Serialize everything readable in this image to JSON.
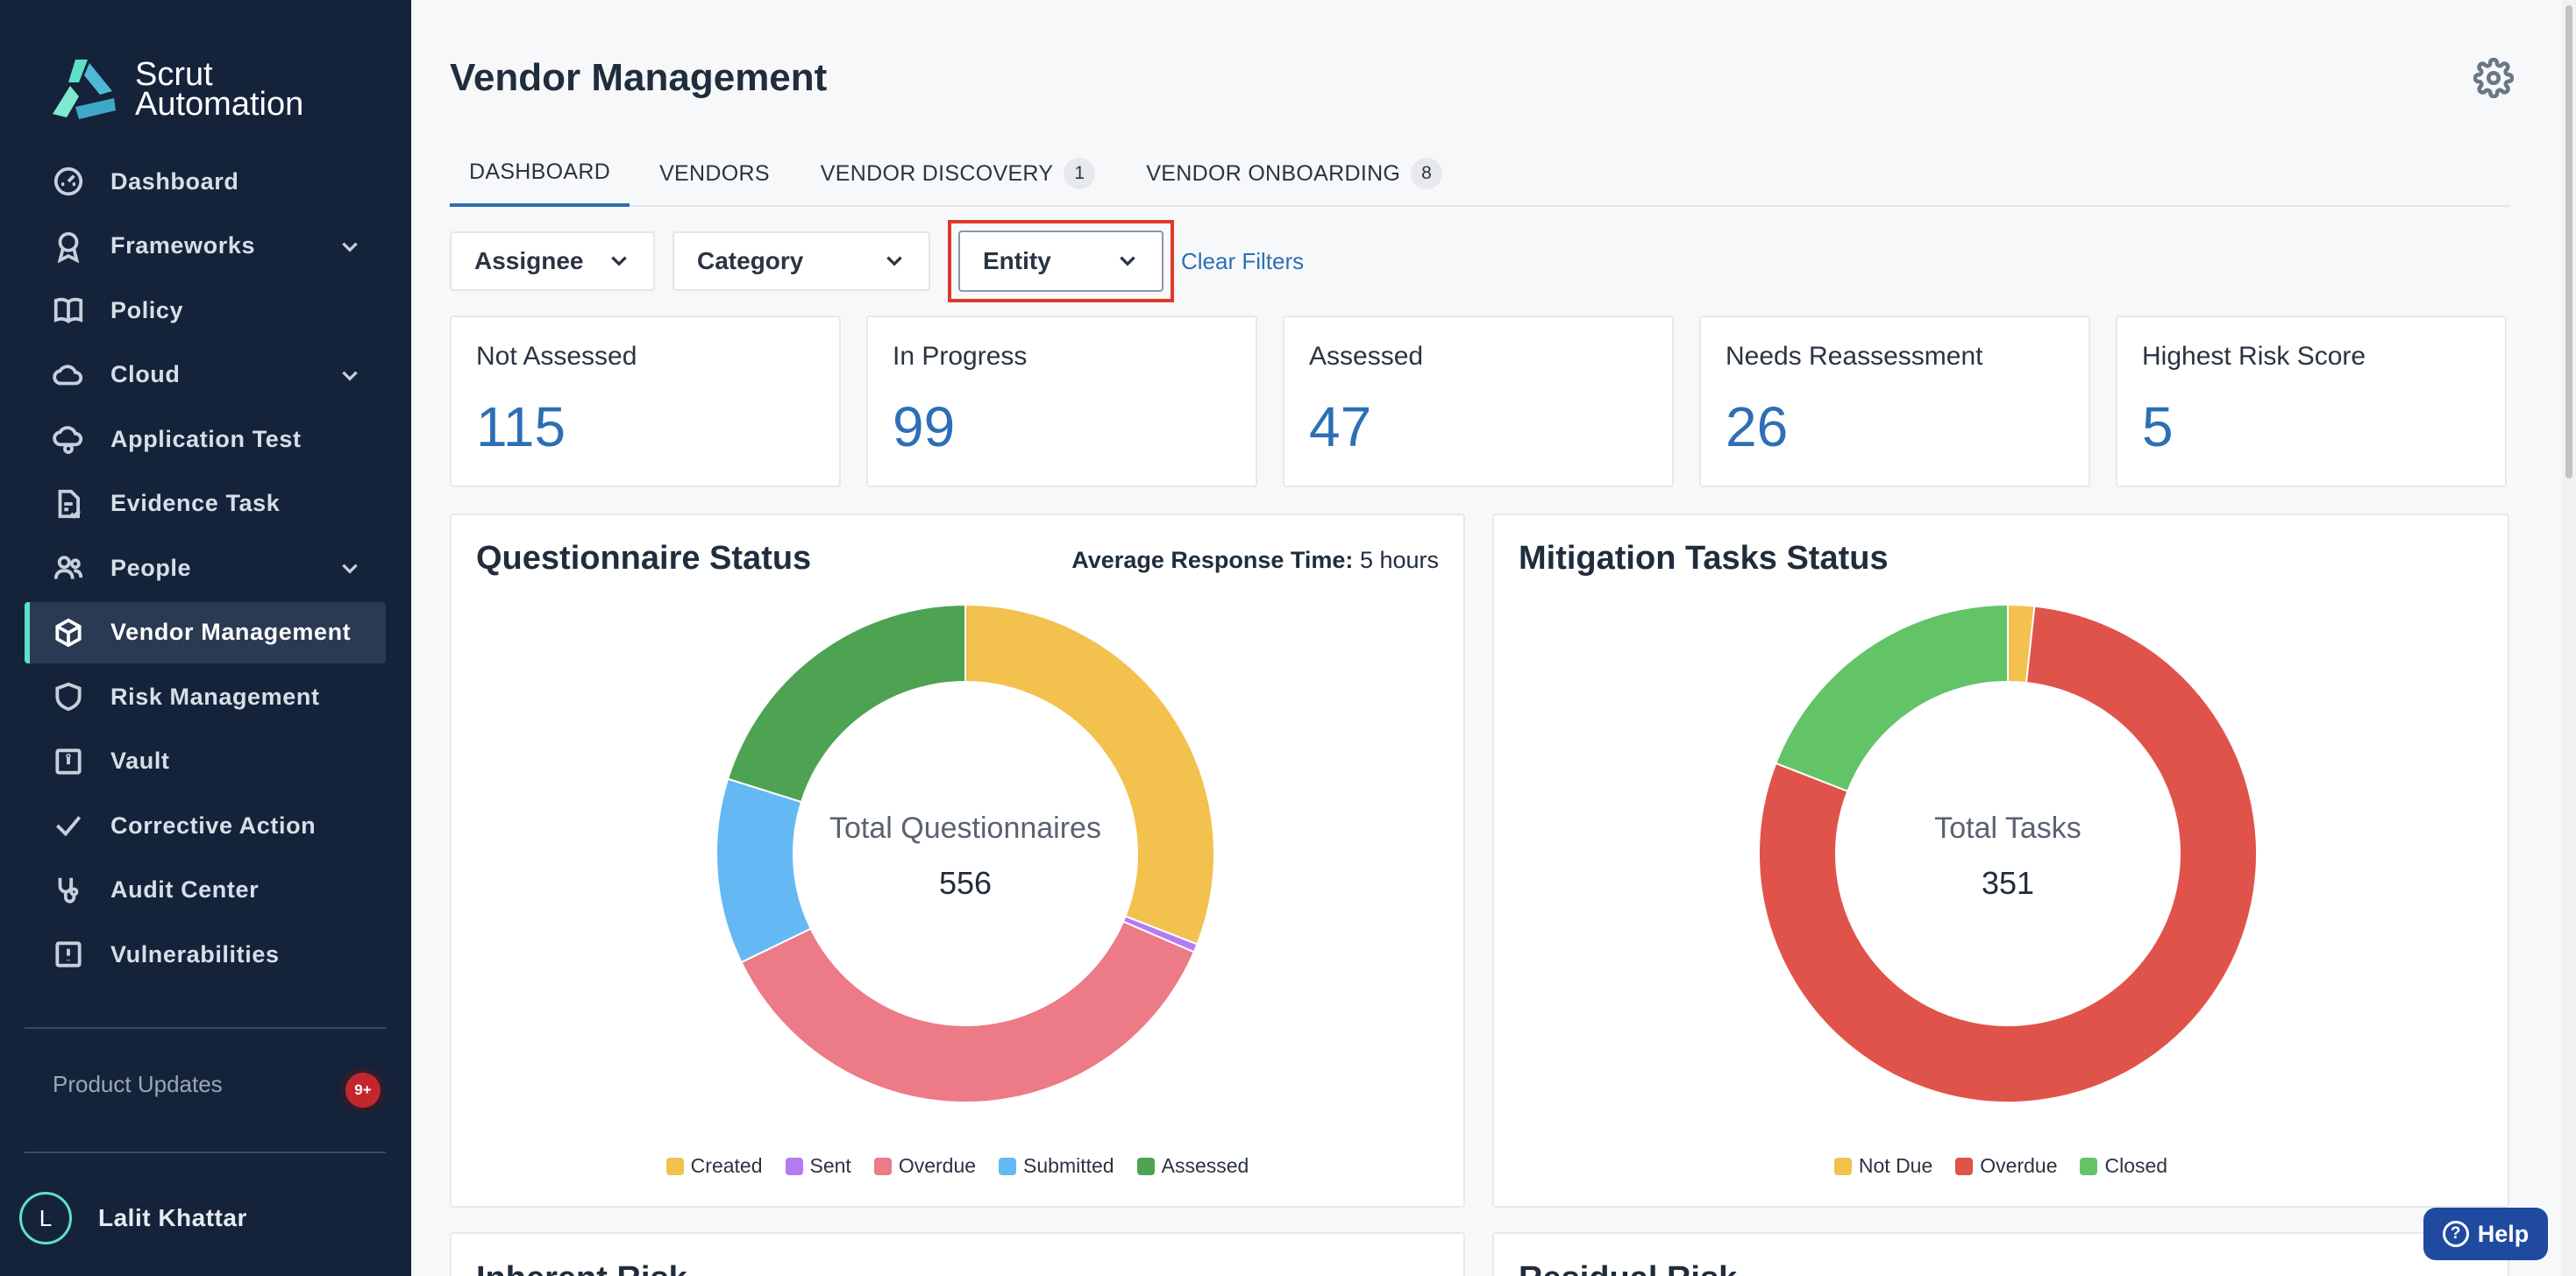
{
  "brand": {
    "line1": "Scrut",
    "line2": "Automation"
  },
  "sidebar": {
    "items": [
      {
        "label": "Dashboard",
        "icon": "dashboard-icon",
        "chevron": false,
        "active": false
      },
      {
        "label": "Frameworks",
        "icon": "award-icon",
        "chevron": true,
        "active": false
      },
      {
        "label": "Policy",
        "icon": "book-icon",
        "chevron": false,
        "active": false
      },
      {
        "label": "Cloud",
        "icon": "cloud-icon",
        "chevron": true,
        "active": false
      },
      {
        "label": "Application Test",
        "icon": "cloud-gear-icon",
        "chevron": false,
        "active": false
      },
      {
        "label": "Evidence Task",
        "icon": "document-check-icon",
        "chevron": false,
        "active": false
      },
      {
        "label": "People",
        "icon": "people-icon",
        "chevron": true,
        "active": false
      },
      {
        "label": "Vendor Management",
        "icon": "box-icon",
        "chevron": false,
        "active": true
      },
      {
        "label": "Risk Management",
        "icon": "shield-icon",
        "chevron": false,
        "active": false
      },
      {
        "label": "Vault",
        "icon": "vault-icon",
        "chevron": false,
        "active": false
      },
      {
        "label": "Corrective Action",
        "icon": "check-icon",
        "chevron": false,
        "active": false
      },
      {
        "label": "Audit Center",
        "icon": "stethoscope-icon",
        "chevron": false,
        "active": false
      },
      {
        "label": "Vulnerabilities",
        "icon": "alert-square-icon",
        "chevron": false,
        "active": false
      }
    ],
    "product_updates": "Product Updates",
    "updates_badge": "9+",
    "user": {
      "initial": "L",
      "name": "Lalit Khattar"
    }
  },
  "header": {
    "title": "Vendor Management"
  },
  "tabs": [
    {
      "label": "DASHBOARD",
      "count": null,
      "active": true
    },
    {
      "label": "VENDORS",
      "count": null,
      "active": false
    },
    {
      "label": "VENDOR DISCOVERY",
      "count": "1",
      "active": false
    },
    {
      "label": "VENDOR ONBOARDING",
      "count": "8",
      "active": false
    }
  ],
  "filters": {
    "assignee": "Assignee",
    "category": "Category",
    "entity": "Entity",
    "clear": "Clear Filters"
  },
  "stats": [
    {
      "label": "Not Assessed",
      "value": "115"
    },
    {
      "label": "In Progress",
      "value": "99"
    },
    {
      "label": "Assessed",
      "value": "47"
    },
    {
      "label": "Needs Reassessment",
      "value": "26"
    },
    {
      "label": "Highest Risk Score",
      "value": "5"
    }
  ],
  "questionnaire": {
    "title": "Questionnaire Status",
    "avg_label": "Average Response Time:",
    "avg_value": "5 hours",
    "center_label": "Total Questionnaires",
    "center_value": "556"
  },
  "mitigation": {
    "title": "Mitigation Tasks Status",
    "center_label": "Total Tasks",
    "center_value": "351"
  },
  "bottom": {
    "left_title": "Inherent Risk",
    "right_title": "Residual Risk"
  },
  "help": {
    "label": "Help"
  },
  "colors": {
    "accent": "#2d6fb5",
    "sidebar": "#14233a",
    "highlight": "#e0392b"
  },
  "chart_data": [
    {
      "type": "pie",
      "title": "Questionnaire Status",
      "categories": [
        "Created",
        "Sent",
        "Overdue",
        "Submitted",
        "Assessed"
      ],
      "values": [
        172,
        3,
        202,
        67,
        112
      ],
      "colors": [
        "#f2c14e",
        "#b57cf2",
        "#ec7a87",
        "#64b9f4",
        "#4ea352"
      ],
      "legend": "bottom"
    },
    {
      "type": "pie",
      "title": "Mitigation Tasks Status",
      "categories": [
        "Not Due",
        "Overdue",
        "Closed"
      ],
      "values": [
        6,
        278,
        67
      ],
      "colors": [
        "#f2c14e",
        "#e0534a",
        "#62c466"
      ],
      "legend": "bottom"
    }
  ]
}
